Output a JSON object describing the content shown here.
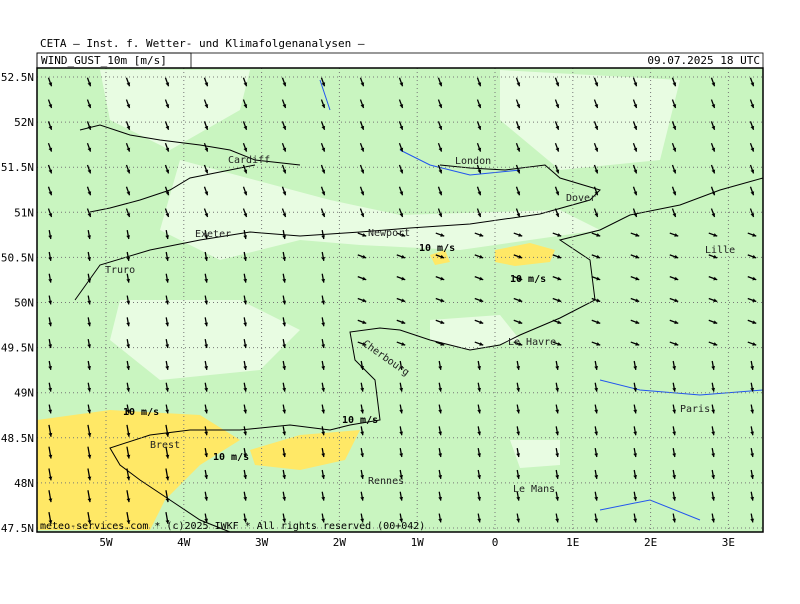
{
  "header": {
    "title": "CETA — Inst. f. Wetter- und Klimafolgenanalysen —",
    "field": "WIND_GUST_10m [m/s]",
    "datetime": "09.07.2025 18 UTC"
  },
  "map": {
    "lat_labels": [
      "52.5N",
      "52N",
      "51.5N",
      "51N",
      "50.5N",
      "50N",
      "49.5N",
      "49N",
      "48.5N",
      "48N",
      "47.5N"
    ],
    "lon_labels": [
      "5W",
      "4W",
      "3W",
      "2W",
      "1W",
      "0",
      "1E",
      "2E",
      "3E"
    ],
    "places": [
      "Cardiff",
      "London",
      "Dover",
      "Exeter",
      "Newport",
      "Truro",
      "Lille",
      "Cherbourg",
      "Le Havre",
      "Paris",
      "Brest",
      "Rennes",
      "Le Mans"
    ],
    "contour_labels": [
      "10 m/s",
      "10 m/s",
      "10 m/s",
      "10 m/s",
      "10 m/s"
    ]
  },
  "footer": "meteo-services.com * (c)2025 IWKF * All rights reserved (00+042)"
}
